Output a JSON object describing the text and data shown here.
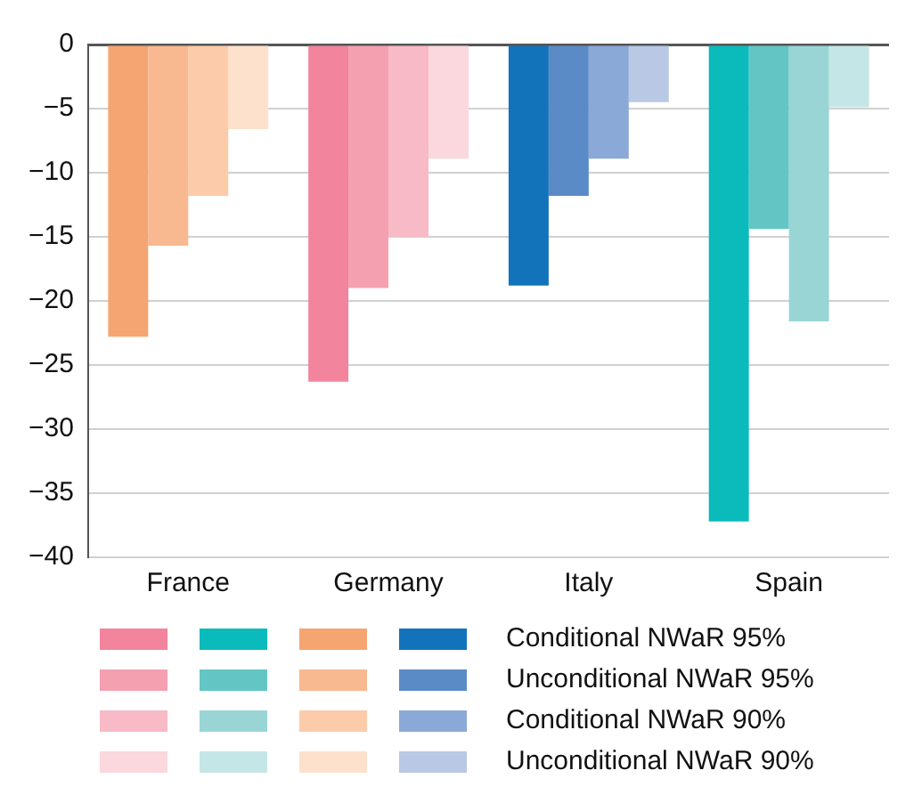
{
  "chart_data": {
    "type": "bar",
    "categories": [
      "France",
      "Germany",
      "Italy",
      "Spain"
    ],
    "series": [
      {
        "name": "Conditional NWaR 95%",
        "colors": [
          "#f5a572",
          "#f2849e",
          "#1273ba",
          "#0bbbbb"
        ],
        "values": [
          -22.8,
          -26.3,
          -18.8,
          -37.2
        ]
      },
      {
        "name": "Unconditional NWaR 95%",
        "colors": [
          "#f8b890",
          "#f4a0b1",
          "#5b8bc7",
          "#64c6c4"
        ],
        "values": [
          -15.7,
          -19.0,
          -11.8,
          -14.4
        ]
      },
      {
        "name": "Conditional NWaR 90%",
        "colors": [
          "#fbcbaa",
          "#f7bac6",
          "#8aa9d6",
          "#99d5d5"
        ],
        "values": [
          -11.8,
          -15.0,
          -8.9,
          -21.6
        ]
      },
      {
        "name": "Unconditional NWaR 90%",
        "colors": [
          "#fde1cc",
          "#fad8de",
          "#b8c8e5",
          "#c5e6e6"
        ],
        "values": [
          -6.6,
          -8.9,
          -4.5,
          -4.9
        ]
      }
    ],
    "ylim": [
      -40,
      0
    ],
    "yticks": [
      -40,
      -35,
      -30,
      -25,
      -20,
      -15,
      -10,
      -5,
      0
    ],
    "grid": "y",
    "legend": "bottom"
  }
}
